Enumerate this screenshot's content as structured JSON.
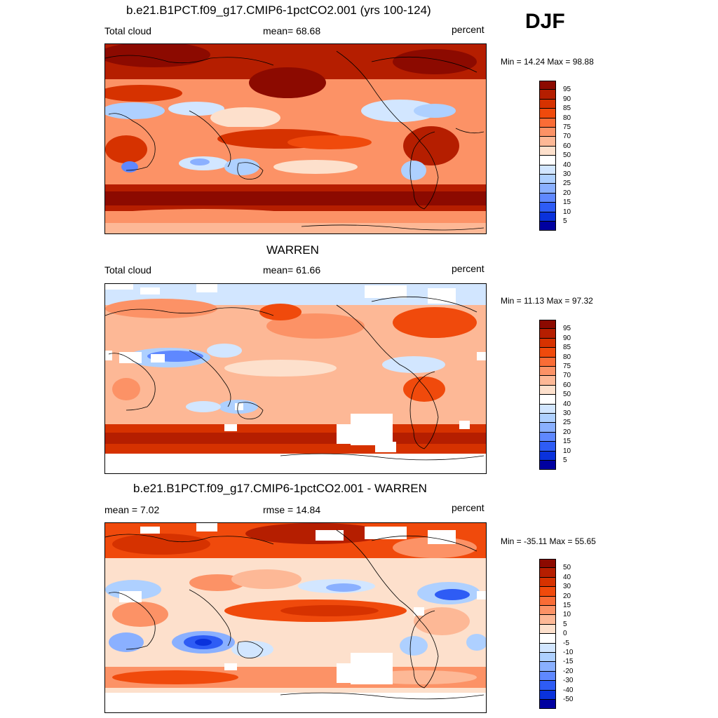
{
  "season": "DJF",
  "panels": [
    {
      "id": "model",
      "title": "b.e21.B1PCT.f09_g17.CMIP6-1pctCO2.001 (yrs 100-124)",
      "left_label": "Total cloud",
      "center_label": "mean=  68.68",
      "right_label": "percent",
      "minmax": "Min =  14.24 Max =  98.88",
      "colorbar": {
        "labels": [
          "95",
          "90",
          "85",
          "80",
          "75",
          "70",
          "60",
          "50",
          "40",
          "30",
          "25",
          "20",
          "15",
          "10",
          "5"
        ],
        "colors": [
          "#8c0a00",
          "#b51e00",
          "#d63200",
          "#f04a0c",
          "#fa6c36",
          "#fc9266",
          "#fdb896",
          "#fde0cc",
          "#ffffff",
          "#d2e6ff",
          "#aed0ff",
          "#8ab0ff",
          "#5f88ff",
          "#2e5cf5",
          "#0a32dc",
          "#0000a0"
        ]
      }
    },
    {
      "id": "obs",
      "title": "WARREN",
      "left_label": "Total cloud",
      "center_label": "mean=  61.66",
      "right_label": "percent",
      "minmax": "Min =  11.13 Max =  97.32",
      "colorbar": {
        "labels": [
          "95",
          "90",
          "85",
          "80",
          "75",
          "70",
          "60",
          "50",
          "40",
          "30",
          "25",
          "20",
          "15",
          "10",
          "5"
        ],
        "colors": [
          "#8c0a00",
          "#b51e00",
          "#d63200",
          "#f04a0c",
          "#fa6c36",
          "#fc9266",
          "#fdb896",
          "#fde0cc",
          "#ffffff",
          "#d2e6ff",
          "#aed0ff",
          "#8ab0ff",
          "#5f88ff",
          "#2e5cf5",
          "#0a32dc",
          "#0000a0"
        ]
      }
    },
    {
      "id": "diff",
      "title": "b.e21.B1PCT.f09_g17.CMIP6-1pctCO2.001 - WARREN",
      "left_label": "mean =   7.02",
      "center_label": "rmse =  14.84",
      "right_label": "percent",
      "minmax": "Min = -35.11 Max =  55.65",
      "colorbar": {
        "labels": [
          "50",
          "40",
          "30",
          "20",
          "15",
          "10",
          "5",
          "0",
          "-5",
          "-10",
          "-15",
          "-20",
          "-30",
          "-40",
          "-50"
        ],
        "colors": [
          "#8c0a00",
          "#b51e00",
          "#d63200",
          "#f04a0c",
          "#fa6c36",
          "#fc9266",
          "#fdb896",
          "#fde0cc",
          "#ffffff",
          "#d2e6ff",
          "#aed0ff",
          "#8ab0ff",
          "#5f88ff",
          "#2e5cf5",
          "#0a32dc",
          "#0000a0"
        ]
      }
    }
  ],
  "chart_data": [
    {
      "type": "heatmap",
      "title": "b.e21.B1PCT.f09_g17.CMIP6-1pctCO2.001 (yrs 100-124)",
      "variable": "Total cloud",
      "units": "percent",
      "mean": 68.68,
      "min": 14.24,
      "max": 98.88,
      "levels": [
        5,
        10,
        15,
        20,
        25,
        30,
        40,
        50,
        60,
        70,
        75,
        80,
        85,
        90,
        95
      ]
    },
    {
      "type": "heatmap",
      "title": "WARREN",
      "variable": "Total cloud",
      "units": "percent",
      "mean": 61.66,
      "min": 11.13,
      "max": 97.32,
      "levels": [
        5,
        10,
        15,
        20,
        25,
        30,
        40,
        50,
        60,
        70,
        75,
        80,
        85,
        90,
        95
      ]
    },
    {
      "type": "heatmap",
      "title": "b.e21.B1PCT.f09_g17.CMIP6-1pctCO2.001 - WARREN",
      "units": "percent",
      "mean": 7.02,
      "rmse": 14.84,
      "min": -35.11,
      "max": 55.65,
      "levels": [
        -50,
        -40,
        -30,
        -20,
        -15,
        -10,
        -5,
        0,
        5,
        10,
        15,
        20,
        30,
        40,
        50
      ]
    }
  ]
}
